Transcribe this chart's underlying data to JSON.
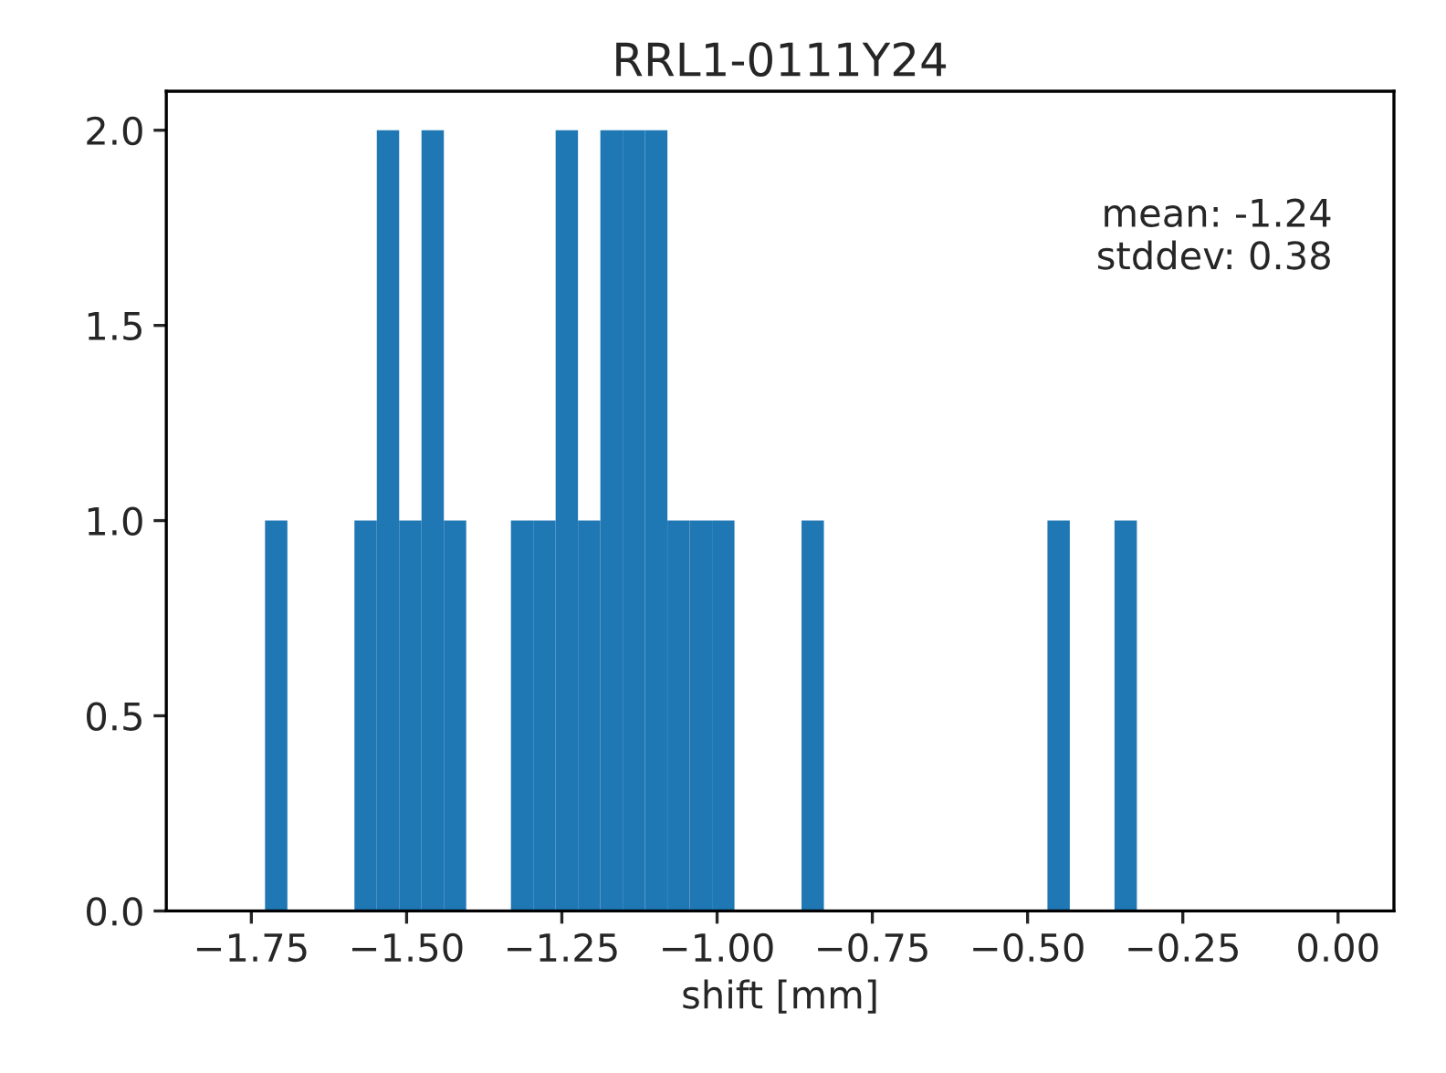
{
  "chart_data": {
    "type": "histogram",
    "title": "RRL1-0111Y24",
    "xlabel": "shift [mm]",
    "bins": [
      -1.8,
      -1.764,
      -1.728,
      -1.692,
      -1.656,
      -1.62,
      -1.584,
      -1.548,
      -1.512,
      -1.476,
      -1.44,
      -1.404,
      -1.368,
      -1.332,
      -1.296,
      -1.26,
      -1.224,
      -1.188,
      -1.152,
      -1.116,
      -1.08,
      -1.044,
      -1.008,
      -0.972,
      -0.936,
      -0.9,
      -0.864,
      -0.828,
      -0.792,
      -0.756,
      -0.72,
      -0.684,
      -0.648,
      -0.612,
      -0.576,
      -0.54,
      -0.504,
      -0.468,
      -0.432,
      -0.396,
      -0.36,
      -0.324,
      -0.288,
      -0.252,
      -0.216,
      -0.18,
      -0.144,
      -0.108,
      -0.072,
      -0.036,
      0.0
    ],
    "values": [
      0,
      0,
      1,
      0,
      0,
      0,
      1,
      2,
      1,
      2,
      1,
      0,
      0,
      1,
      1,
      2,
      1,
      2,
      2,
      2,
      1,
      1,
      1,
      0,
      0,
      0,
      1,
      0,
      0,
      0,
      0,
      0,
      0,
      0,
      0,
      0,
      0,
      1,
      0,
      0,
      1,
      0,
      0,
      0,
      0,
      0,
      0,
      0,
      0,
      0
    ],
    "color": "#1f77b4",
    "xlim": [
      -1.887,
      0.09
    ],
    "xticks": [
      {
        "value": -1.75,
        "label": "−1.75"
      },
      {
        "value": -1.5,
        "label": "−1.50"
      },
      {
        "value": -1.25,
        "label": "−1.25"
      },
      {
        "value": -1.0,
        "label": "−1.00"
      },
      {
        "value": -0.75,
        "label": "−0.75"
      },
      {
        "value": -0.5,
        "label": "−0.50"
      },
      {
        "value": -0.25,
        "label": "−0.25"
      },
      {
        "value": 0,
        "label": "0.00"
      }
    ],
    "ylim": [
      0,
      2.1
    ],
    "yticks": [
      {
        "value": 0,
        "label": "0.0"
      },
      {
        "value": 0.5,
        "label": "0.5"
      },
      {
        "value": 1.0,
        "label": "1.0"
      },
      {
        "value": 1.5,
        "label": "1.5"
      },
      {
        "value": 2.0,
        "label": "2.0"
      }
    ],
    "annotations": [
      "mean: -1.24\nstddev: 0.38"
    ]
  }
}
